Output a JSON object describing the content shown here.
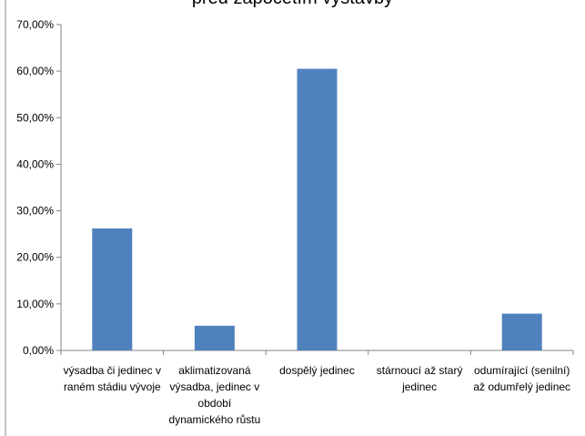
{
  "chart_data": {
    "type": "bar",
    "title": "před započetím výstavby",
    "xlabel": "",
    "ylabel": "",
    "ylim": [
      0,
      70
    ],
    "y_tick_values": [
      0,
      10,
      20,
      30,
      40,
      50,
      60,
      70
    ],
    "y_tick_labels": [
      "0,00%",
      "10,00%",
      "20,00%",
      "30,00%",
      "40,00%",
      "50,00%",
      "60,00%",
      "70,00%"
    ],
    "categories": [
      [
        "výsadba či jedinec v",
        "raném stádiu vývoje"
      ],
      [
        "aklimatizovaná",
        "výsadba, jedinec v",
        "období",
        "dynamického růstu"
      ],
      [
        "dospělý jedinec"
      ],
      [
        "stárnoucí až starý",
        "jedinec"
      ],
      [
        "odumírající (senilní)",
        "až odumřelý jedinec"
      ]
    ],
    "values": [
      26.2,
      5.3,
      60.5,
      0,
      7.9
    ],
    "bar_color": "#4F81BD",
    "grid": false,
    "legend": "none"
  }
}
